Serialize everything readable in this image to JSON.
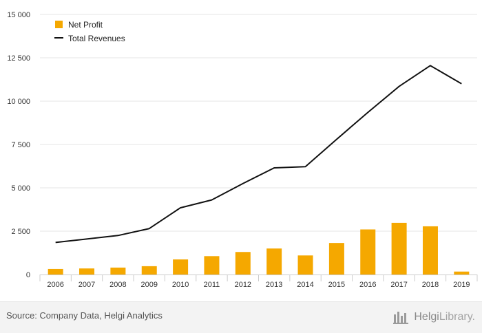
{
  "chart_data": {
    "type": "bar",
    "title": "",
    "xlabel": "",
    "ylabel": "",
    "categories": [
      "2006",
      "2007",
      "2008",
      "2009",
      "2010",
      "2011",
      "2012",
      "2013",
      "2014",
      "2015",
      "2016",
      "2017",
      "2018",
      "2019"
    ],
    "series": [
      {
        "name": "Net Profit",
        "type": "bar",
        "color": "#f5a800",
        "values": [
          320,
          350,
          400,
          480,
          870,
          1060,
          1300,
          1500,
          1100,
          1820,
          2600,
          2980,
          2780,
          170
        ]
      },
      {
        "name": "Total Revenues",
        "type": "line",
        "color": "#111111",
        "values": [
          1850,
          2050,
          2250,
          2650,
          3850,
          4300,
          5250,
          6150,
          6220,
          7800,
          9350,
          10850,
          12050,
          11000
        ]
      }
    ],
    "yticks": [
      "0",
      "2 500",
      "5 000",
      "7 500",
      "10 000",
      "12 500",
      "15 000"
    ],
    "ylim": [
      0,
      15000
    ],
    "grid": true,
    "legend": "top-left"
  },
  "footer": {
    "source": "Source: Company Data, Helgi Analytics",
    "brand_main": "Helgi",
    "brand_sub": "Library."
  },
  "colors": {
    "bar": "#f5a800",
    "line": "#111111",
    "grid": "#e6e6e6",
    "axis_text": "#333333"
  },
  "icons": {
    "brand": "helgi-library-logo-icon"
  }
}
